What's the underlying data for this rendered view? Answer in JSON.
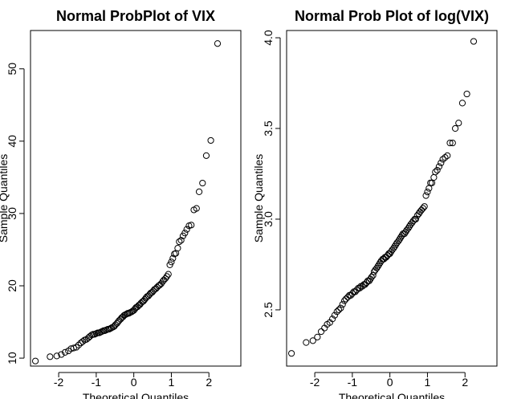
{
  "chart_data": [
    {
      "type": "scatter",
      "title": "Normal ProbPlot of VIX",
      "xlabel": "Theoretical Quantiles",
      "ylabel": "Sample Quantiles",
      "xlim": [
        -2.75,
        2.85
      ],
      "ylim": [
        8.9,
        55.3
      ],
      "x_ticks": [
        -2,
        -1,
        0,
        1,
        2
      ],
      "y_ticks": [
        10,
        20,
        30,
        40,
        50
      ],
      "grid": false,
      "marker": "open-circle",
      "color": "#000000",
      "points": [
        [
          -2.62,
          9.6
        ],
        [
          -2.23,
          10.2
        ],
        [
          -2.05,
          10.3
        ],
        [
          -1.93,
          10.5
        ],
        [
          -1.83,
          10.8
        ],
        [
          -1.74,
          11.0
        ],
        [
          -1.67,
          11.3
        ],
        [
          -1.6,
          11.4
        ],
        [
          -1.53,
          11.5
        ],
        [
          -1.47,
          11.8
        ],
        [
          -1.41,
          12.1
        ],
        [
          -1.36,
          12.3
        ],
        [
          -1.31,
          12.5
        ],
        [
          -1.26,
          12.6
        ],
        [
          -1.21,
          12.8
        ],
        [
          -1.17,
          13.0
        ],
        [
          -1.12,
          13.2
        ],
        [
          -1.08,
          13.3
        ],
        [
          -1.04,
          13.3
        ],
        [
          -1.0,
          13.4
        ],
        [
          -0.96,
          13.5
        ],
        [
          -0.92,
          13.5
        ],
        [
          -0.88,
          13.6
        ],
        [
          -0.84,
          13.7
        ],
        [
          -0.8,
          13.8
        ],
        [
          -0.77,
          13.8
        ],
        [
          -0.73,
          13.9
        ],
        [
          -0.69,
          14.0
        ],
        [
          -0.66,
          14.0
        ],
        [
          -0.62,
          14.1
        ],
        [
          -0.59,
          14.2
        ],
        [
          -0.55,
          14.3
        ],
        [
          -0.52,
          14.4
        ],
        [
          -0.49,
          14.6
        ],
        [
          -0.45,
          14.8
        ],
        [
          -0.42,
          15.0
        ],
        [
          -0.39,
          15.2
        ],
        [
          -0.35,
          15.4
        ],
        [
          -0.32,
          15.6
        ],
        [
          -0.29,
          15.7
        ],
        [
          -0.26,
          15.9
        ],
        [
          -0.23,
          16.0
        ],
        [
          -0.19,
          16.1
        ],
        [
          -0.16,
          16.2
        ],
        [
          -0.13,
          16.2
        ],
        [
          -0.1,
          16.3
        ],
        [
          -0.06,
          16.4
        ],
        [
          -0.03,
          16.5
        ],
        [
          0.0,
          16.6
        ],
        [
          0.03,
          16.8
        ],
        [
          0.06,
          17.0
        ],
        [
          0.1,
          17.1
        ],
        [
          0.13,
          17.3
        ],
        [
          0.16,
          17.4
        ],
        [
          0.19,
          17.6
        ],
        [
          0.23,
          17.8
        ],
        [
          0.26,
          17.9
        ],
        [
          0.29,
          18.1
        ],
        [
          0.32,
          18.3
        ],
        [
          0.35,
          18.5
        ],
        [
          0.39,
          18.6
        ],
        [
          0.42,
          18.8
        ],
        [
          0.45,
          19.0
        ],
        [
          0.49,
          19.1
        ],
        [
          0.52,
          19.3
        ],
        [
          0.55,
          19.5
        ],
        [
          0.59,
          19.6
        ],
        [
          0.62,
          19.8
        ],
        [
          0.66,
          20.0
        ],
        [
          0.69,
          20.1
        ],
        [
          0.73,
          20.3
        ],
        [
          0.77,
          20.6
        ],
        [
          0.8,
          20.8
        ],
        [
          0.84,
          21.0
        ],
        [
          0.88,
          21.3
        ],
        [
          0.92,
          21.6
        ],
        [
          0.96,
          22.9
        ],
        [
          1.0,
          23.3
        ],
        [
          1.04,
          23.8
        ],
        [
          1.08,
          24.4
        ],
        [
          1.12,
          24.5
        ],
        [
          1.17,
          25.2
        ],
        [
          1.21,
          26.1
        ],
        [
          1.26,
          26.3
        ],
        [
          1.31,
          26.9
        ],
        [
          1.36,
          27.3
        ],
        [
          1.41,
          27.8
        ],
        [
          1.47,
          28.3
        ],
        [
          1.53,
          28.4
        ],
        [
          1.6,
          30.5
        ],
        [
          1.67,
          30.7
        ],
        [
          1.74,
          33.0
        ],
        [
          1.83,
          34.2
        ],
        [
          1.93,
          38.0
        ],
        [
          2.05,
          40.1
        ],
        [
          2.23,
          53.5
        ]
      ]
    },
    {
      "type": "scatter",
      "title": "Normal Prob Plot of log(VIX)",
      "xlabel": "Theoretical Quantiles",
      "ylabel": "Sample Quantiles",
      "xlim": [
        -2.75,
        2.85
      ],
      "ylim": [
        2.19,
        4.04
      ],
      "x_ticks": [
        -2,
        -1,
        0,
        1,
        2
      ],
      "y_ticks": [
        2.5,
        3.0,
        3.5,
        4.0
      ],
      "y_tick_labels": [
        "2.5",
        "3.0",
        "3.5",
        "4.0"
      ],
      "grid": false,
      "marker": "open-circle",
      "color": "#000000",
      "points": [
        [
          -2.62,
          2.26
        ],
        [
          -2.23,
          2.32
        ],
        [
          -2.05,
          2.33
        ],
        [
          -1.93,
          2.35
        ],
        [
          -1.83,
          2.38
        ],
        [
          -1.74,
          2.4
        ],
        [
          -1.67,
          2.42
        ],
        [
          -1.6,
          2.43
        ],
        [
          -1.53,
          2.45
        ],
        [
          -1.47,
          2.47
        ],
        [
          -1.41,
          2.49
        ],
        [
          -1.36,
          2.5
        ],
        [
          -1.31,
          2.51
        ],
        [
          -1.26,
          2.53
        ],
        [
          -1.21,
          2.55
        ],
        [
          -1.17,
          2.56
        ],
        [
          -1.12,
          2.57
        ],
        [
          -1.08,
          2.58
        ],
        [
          -1.04,
          2.58
        ],
        [
          -1.0,
          2.59
        ],
        [
          -0.96,
          2.6
        ],
        [
          -0.92,
          2.6
        ],
        [
          -0.88,
          2.61
        ],
        [
          -0.84,
          2.62
        ],
        [
          -0.8,
          2.62
        ],
        [
          -0.77,
          2.63
        ],
        [
          -0.73,
          2.63
        ],
        [
          -0.69,
          2.64
        ],
        [
          -0.66,
          2.64
        ],
        [
          -0.62,
          2.65
        ],
        [
          -0.59,
          2.66
        ],
        [
          -0.55,
          2.66
        ],
        [
          -0.52,
          2.67
        ],
        [
          -0.49,
          2.68
        ],
        [
          -0.45,
          2.69
        ],
        [
          -0.42,
          2.71
        ],
        [
          -0.39,
          2.72
        ],
        [
          -0.35,
          2.73
        ],
        [
          -0.32,
          2.74
        ],
        [
          -0.29,
          2.75
        ],
        [
          -0.26,
          2.76
        ],
        [
          -0.23,
          2.77
        ],
        [
          -0.19,
          2.78
        ],
        [
          -0.16,
          2.78
        ],
        [
          -0.13,
          2.79
        ],
        [
          -0.1,
          2.79
        ],
        [
          -0.06,
          2.8
        ],
        [
          -0.03,
          2.81
        ],
        [
          0.0,
          2.81
        ],
        [
          0.03,
          2.82
        ],
        [
          0.06,
          2.83
        ],
        [
          0.1,
          2.84
        ],
        [
          0.13,
          2.85
        ],
        [
          0.16,
          2.86
        ],
        [
          0.19,
          2.87
        ],
        [
          0.23,
          2.88
        ],
        [
          0.26,
          2.89
        ],
        [
          0.29,
          2.9
        ],
        [
          0.32,
          2.91
        ],
        [
          0.35,
          2.92
        ],
        [
          0.39,
          2.92
        ],
        [
          0.42,
          2.93
        ],
        [
          0.45,
          2.94
        ],
        [
          0.49,
          2.95
        ],
        [
          0.52,
          2.96
        ],
        [
          0.55,
          2.97
        ],
        [
          0.59,
          2.98
        ],
        [
          0.62,
          2.99
        ],
        [
          0.66,
          3.0
        ],
        [
          0.69,
          3.0
        ],
        [
          0.73,
          3.02
        ],
        [
          0.77,
          3.03
        ],
        [
          0.8,
          3.04
        ],
        [
          0.84,
          3.05
        ],
        [
          0.88,
          3.06
        ],
        [
          0.92,
          3.07
        ],
        [
          0.96,
          3.13
        ],
        [
          1.0,
          3.15
        ],
        [
          1.04,
          3.17
        ],
        [
          1.08,
          3.2
        ],
        [
          1.12,
          3.2
        ],
        [
          1.17,
          3.23
        ],
        [
          1.21,
          3.26
        ],
        [
          1.26,
          3.27
        ],
        [
          1.31,
          3.29
        ],
        [
          1.36,
          3.31
        ],
        [
          1.41,
          3.33
        ],
        [
          1.47,
          3.34
        ],
        [
          1.53,
          3.35
        ],
        [
          1.6,
          3.42
        ],
        [
          1.67,
          3.42
        ],
        [
          1.74,
          3.5
        ],
        [
          1.83,
          3.53
        ],
        [
          1.93,
          3.64
        ],
        [
          2.05,
          3.69
        ],
        [
          2.23,
          3.98
        ]
      ]
    }
  ]
}
